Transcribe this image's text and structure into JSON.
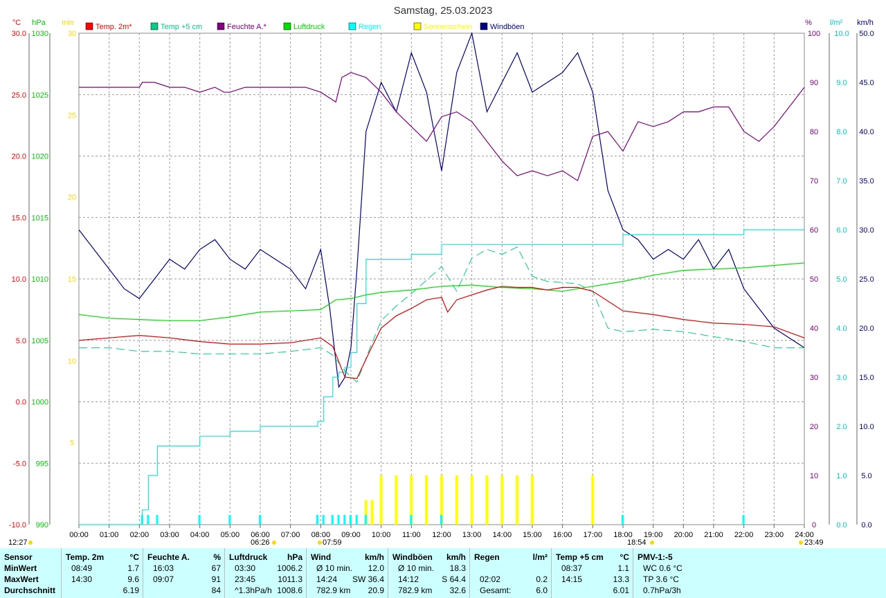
{
  "title": "Samstag, 25.03.2023",
  "axes": {
    "temp": {
      "unit": "°C",
      "ticks": [
        "30.0",
        "25.0",
        "20.0",
        "15.0",
        "10.0",
        "5.0",
        "0.0",
        "-5.0",
        "-10.0"
      ],
      "color": "#ff0000"
    },
    "pressure": {
      "unit": "hPa",
      "ticks": [
        "1030",
        "1025",
        "1020",
        "1015",
        "1010",
        "1005",
        "1000",
        "995",
        "990"
      ],
      "color": "#00cc00"
    },
    "sun": {
      "unit": "min",
      "ticks": [
        "30",
        "25",
        "20",
        "15",
        "10",
        "5"
      ],
      "color": "#ffd800"
    },
    "humidity": {
      "unit": "%",
      "ticks": [
        "100",
        "90",
        "80",
        "70",
        "60",
        "50",
        "40",
        "30",
        "20",
        "10",
        "0"
      ],
      "color": "#800080"
    },
    "rain": {
      "unit": "l/m²",
      "ticks": [
        "10.0",
        "9.0",
        "8.0",
        "7.0",
        "6.0",
        "5.0",
        "4.0",
        "3.0",
        "2.0",
        "1.0",
        "0.0"
      ],
      "color": "#00cccc"
    },
    "wind": {
      "unit": "km/h",
      "ticks": [
        "50.0",
        "45.0",
        "40.0",
        "35.0",
        "30.0",
        "25.0",
        "20.0",
        "15.0",
        "10.0",
        "5.0",
        "0.0"
      ],
      "color": "#000080"
    }
  },
  "legend": [
    {
      "label": "Temp. 2m*",
      "color": "#ff0000"
    },
    {
      "label": "Temp +5 cm",
      "color": "#00cc88"
    },
    {
      "label": "Feuchte A.*",
      "color": "#800080"
    },
    {
      "label": "Luftdruck",
      "color": "#00dd00"
    },
    {
      "label": "Regen",
      "color": "#00ffff"
    },
    {
      "label": "Sonnenschein",
      "color": "#ffff00"
    },
    {
      "label": "Windböen",
      "color": "#000080"
    }
  ],
  "xticks": [
    "00:00",
    "01:00",
    "02:00",
    "03:00",
    "04:00",
    "05:00",
    "06:00",
    "07:00",
    "08:00",
    "09:00",
    "10:00",
    "11:00",
    "12:00",
    "13:00",
    "14:00",
    "15:00",
    "16:00",
    "17:00",
    "18:00",
    "19:00",
    "20:00",
    "21:00",
    "22:00",
    "23:00",
    "24:00"
  ],
  "sun_times": {
    "moonrise": "12:27",
    "sunrise": "06:26",
    "noon": "07:59",
    "sunset": "18:54",
    "moonset": "23:49"
  },
  "chart_data": {
    "type": "line",
    "title": "Samstag, 25.03.2023",
    "x_unit": "hour",
    "series": [
      {
        "name": "Temp. 2m*",
        "axis": "temp",
        "x": [
          0,
          1,
          2,
          3,
          4,
          5,
          6,
          7,
          8,
          8.4,
          8.8,
          9.2,
          9.6,
          10,
          10.5,
          11,
          11.5,
          12,
          12.2,
          12.5,
          13,
          13.5,
          14,
          14.5,
          15,
          15.5,
          16,
          16.5,
          17,
          17.5,
          18,
          19,
          20,
          21,
          22,
          23,
          24
        ],
        "y": [
          5.0,
          5.2,
          5.4,
          5.2,
          4.9,
          4.7,
          4.7,
          4.8,
          5.2,
          4.5,
          2.0,
          1.9,
          4.0,
          6.0,
          7.0,
          7.6,
          8.3,
          8.5,
          7.3,
          8.3,
          8.7,
          9.1,
          9.4,
          9.3,
          9.3,
          9.1,
          9.3,
          9.3,
          9.0,
          8.2,
          7.4,
          7.1,
          6.7,
          6.4,
          6.3,
          6.1,
          5.2
        ]
      },
      {
        "name": "Temp +5 cm",
        "axis": "temp",
        "x": [
          0,
          1,
          2,
          3,
          4,
          5,
          6,
          7,
          8,
          8.4,
          8.8,
          9.2,
          9.6,
          10,
          10.5,
          11,
          11.5,
          12,
          12.5,
          13,
          13.5,
          14,
          14.5,
          15,
          15.5,
          16,
          16.5,
          17,
          17.5,
          18,
          19,
          20,
          21,
          22,
          23,
          24
        ],
        "y": [
          4.4,
          4.4,
          4.1,
          4.1,
          3.9,
          3.9,
          3.9,
          4.1,
          4.4,
          3.8,
          2.5,
          1.6,
          4.2,
          6.6,
          7.8,
          8.8,
          9.9,
          11.0,
          9.0,
          11.7,
          12.4,
          12.0,
          12.6,
          10.2,
          9.8,
          9.7,
          9.6,
          9.0,
          6.0,
          5.7,
          5.9,
          5.7,
          5.3,
          4.9,
          4.4,
          4.4
        ]
      },
      {
        "name": "Feuchte A.*",
        "axis": "humidity",
        "x": [
          0,
          1,
          2,
          2.1,
          2.5,
          3,
          3.5,
          4,
          4.5,
          4.8,
          5,
          5.5,
          6,
          6.5,
          7,
          7.5,
          8,
          8.5,
          8.7,
          9,
          9.5,
          10,
          10.5,
          11,
          11.5,
          12,
          12.5,
          13,
          13.5,
          14,
          14.5,
          15,
          15.5,
          16,
          16.5,
          17,
          17.5,
          18,
          18.5,
          19,
          19.5,
          20,
          20.5,
          21,
          21.5,
          22,
          22.5,
          23,
          23.5,
          24
        ],
        "y": [
          89,
          89,
          89,
          90,
          90,
          89,
          89,
          88,
          89,
          88,
          88,
          89,
          89,
          89,
          89,
          89,
          88,
          86,
          91,
          92,
          91,
          88,
          84,
          81,
          78,
          83,
          84,
          82,
          78,
          74,
          71,
          72,
          71,
          72,
          70,
          79,
          80,
          76,
          82,
          81,
          82,
          84,
          84,
          85,
          85,
          80,
          78,
          81,
          85,
          89
        ]
      },
      {
        "name": "Luftdruck",
        "axis": "pressure",
        "x": [
          0,
          1,
          2,
          3,
          4,
          5,
          6,
          7,
          8,
          8.5,
          9,
          9.5,
          10,
          11,
          12,
          13,
          14,
          15,
          16,
          17,
          17.5,
          18,
          19,
          20,
          21,
          22,
          23,
          24
        ],
        "y": [
          1007.1,
          1006.8,
          1006.7,
          1006.6,
          1006.6,
          1006.9,
          1007.3,
          1007.4,
          1007.5,
          1008.3,
          1008.4,
          1008.7,
          1008.9,
          1009.1,
          1009.4,
          1009.5,
          1009.3,
          1009.2,
          1009.0,
          1009.4,
          1009.6,
          1009.8,
          1010.3,
          1010.7,
          1010.8,
          1010.9,
          1011.1,
          1011.3
        ]
      },
      {
        "name": "Regen",
        "axis": "rain",
        "x": [
          0,
          2.0,
          2.1,
          2.3,
          2.6,
          3.5,
          4.0,
          5.0,
          6.0,
          7.0,
          7.9,
          8.1,
          8.4,
          8.6,
          8.8,
          9.0,
          9.2,
          9.5,
          10,
          11,
          12,
          13,
          14,
          15,
          16,
          17,
          17.5,
          18,
          19,
          20,
          21,
          22,
          23,
          24
        ],
        "y": [
          0,
          0,
          0.3,
          1.0,
          1.6,
          1.6,
          1.8,
          1.9,
          2.0,
          2.0,
          2.1,
          2.6,
          3.0,
          3.1,
          3.2,
          3.5,
          4.5,
          5.4,
          5.4,
          5.5,
          5.7,
          5.7,
          5.7,
          5.7,
          5.7,
          5.7,
          5.7,
          5.9,
          5.9,
          5.9,
          5.9,
          6.0,
          6.0,
          6.0
        ]
      },
      {
        "name": "Windböen",
        "axis": "wind",
        "x": [
          0,
          0.5,
          1,
          1.5,
          2,
          2.5,
          3,
          3.5,
          4,
          4.5,
          5,
          5.5,
          6,
          6.5,
          7,
          7.5,
          8,
          8.3,
          8.6,
          8.8,
          9,
          9.2,
          9.5,
          10,
          10.5,
          11,
          11.5,
          12,
          12.5,
          13,
          13.5,
          14,
          14.5,
          15,
          15.5,
          16,
          16.5,
          17,
          17.5,
          18,
          18.5,
          19,
          19.5,
          20,
          20.5,
          21,
          21.5,
          22,
          22.5,
          23,
          23.5,
          24
        ],
        "y": [
          30,
          28,
          26,
          24,
          23,
          25,
          27,
          26,
          28,
          29,
          27,
          26,
          28,
          27,
          26,
          24,
          28,
          22,
          14,
          15,
          18,
          26,
          40,
          45,
          42,
          48,
          44,
          36,
          46,
          50,
          42,
          45,
          48,
          44,
          45,
          46,
          48,
          44,
          34,
          30,
          29,
          27,
          28,
          27,
          29,
          26,
          28,
          24,
          22,
          20,
          19,
          18
        ]
      },
      {
        "name": "Sonnenschein",
        "axis": "sun",
        "x": [
          9.5,
          9.7,
          10.0,
          10.5,
          11.0,
          11.5,
          12.0,
          12.5,
          13.0,
          13.5,
          14.0,
          14.5,
          15.0,
          17.0
        ],
        "y": [
          1.5,
          1.5,
          3.0,
          3.0,
          3.0,
          3.0,
          3.0,
          3.0,
          3.0,
          3.0,
          3.0,
          3.0,
          3.0,
          3.0
        ]
      }
    ]
  },
  "table": {
    "columns": [
      {
        "header": "Sensor",
        "unit": "",
        "rows": [
          [
            "MinWert",
            "",
            ""
          ],
          [
            "MaxWert",
            "",
            ""
          ],
          [
            "Durchschnitt",
            "",
            ""
          ]
        ]
      },
      {
        "header": "Temp. 2m",
        "unit": "°C",
        "rows": [
          [
            "08:49",
            "",
            "1.7"
          ],
          [
            "14:30",
            "",
            "9.6"
          ],
          [
            "",
            "",
            "6.19"
          ]
        ]
      },
      {
        "header": "Feuchte A.",
        "unit": "%",
        "rows": [
          [
            "16:03",
            "",
            "67"
          ],
          [
            "09:07",
            "",
            "91"
          ],
          [
            "",
            "",
            "84"
          ]
        ]
      },
      {
        "header": "Luftdruck",
        "unit": "hPa",
        "rows": [
          [
            "03:30",
            "",
            "1006.2"
          ],
          [
            "23:45",
            "",
            "1011.3"
          ],
          [
            "^1.3hPa/h",
            "",
            "1008.6"
          ]
        ]
      },
      {
        "header": "Wind",
        "unit": "km/h",
        "rows": [
          [
            "Ø 10 min.",
            "",
            "12.0"
          ],
          [
            "14:24",
            "SW 36.4",
            ""
          ],
          [
            "782.9 km",
            "",
            "20.9"
          ]
        ]
      },
      {
        "header": "Windböen",
        "unit": "km/h",
        "rows": [
          [
            "Ø 10 min.",
            "",
            "18.3"
          ],
          [
            "14:12",
            "S 64.4",
            ""
          ],
          [
            "782.9 km",
            "",
            "32.6"
          ]
        ]
      },
      {
        "header": "Regen",
        "unit": "l/m²",
        "rows": [
          [
            "",
            "",
            ""
          ],
          [
            "02:02",
            "",
            "0.2"
          ],
          [
            "Gesamt:",
            "",
            "6.0"
          ]
        ]
      },
      {
        "header": "Temp +5 cm",
        "unit": "°C",
        "rows": [
          [
            "08:37",
            "",
            "1.1"
          ],
          [
            "14:15",
            "",
            "13.3"
          ],
          [
            "",
            "",
            "6.01"
          ]
        ]
      },
      {
        "header": "PMV-1:-5",
        "unit": "",
        "rows": [
          [
            "WC 0.6 °C",
            "",
            ""
          ],
          [
            "TP 3.6 °C",
            "",
            ""
          ],
          [
            "0.7hPa/3h",
            "",
            ""
          ]
        ]
      }
    ]
  }
}
